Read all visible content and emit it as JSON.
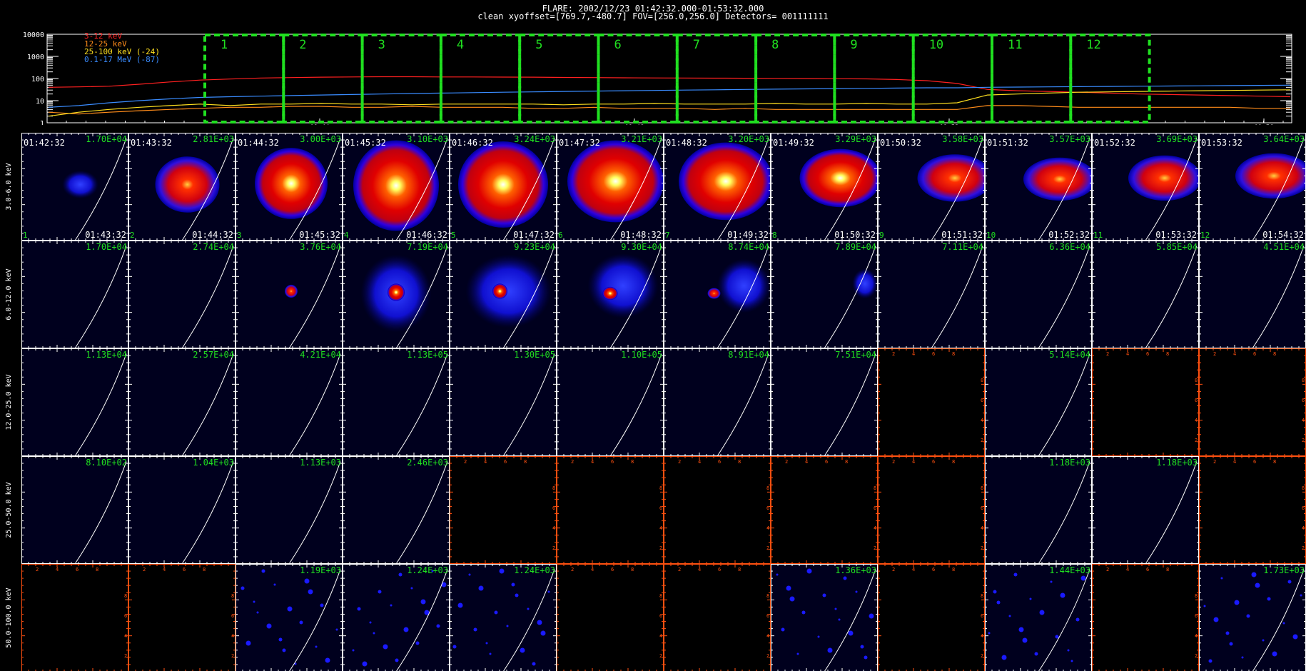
{
  "header": {
    "line1": "FLARE: 2002/12/23 01:42:32.000-01:53:32.000",
    "line2": "clean    xyoffset=[769.7,-480.7]   FOV=[256.0,256.0]    Detectors= 001111111"
  },
  "chart_data": [
    {
      "type": "line",
      "ylog": true,
      "ylim": [
        1,
        10000
      ],
      "ytick_labels": [
        "10000",
        "1000",
        "100",
        "10",
        "1"
      ],
      "xtick_labels": [
        "01:44",
        "01:48",
        "01:52",
        "01:56"
      ],
      "series": [
        {
          "name": "3-12 keV",
          "color": "#ff2020",
          "values": [
            40,
            42,
            45,
            55,
            70,
            85,
            95,
            105,
            110,
            115,
            118,
            120,
            120,
            118,
            118,
            116,
            115,
            112,
            110,
            108,
            106,
            105,
            104,
            103,
            102,
            100,
            98,
            96,
            90,
            80,
            60,
            32,
            28,
            26,
            24,
            22,
            20,
            19,
            18,
            17,
            16,
            15
          ]
        },
        {
          "name": "12-25 keV",
          "color": "#ff8c1a",
          "values": [
            3,
            2.5,
            3,
            3.5,
            4,
            4.5,
            5,
            5,
            5.5,
            5.5,
            5,
            5,
            5.5,
            5,
            5,
            5,
            4.5,
            4.5,
            5,
            4.5,
            4.5,
            4.5,
            4,
            4.5,
            4,
            4,
            4,
            4,
            4,
            4,
            4,
            6,
            6,
            5.5,
            5,
            5,
            5,
            5,
            5,
            5,
            4.5,
            4.5
          ]
        },
        {
          "name": "25-100 keV (-24)",
          "color": "#ffe020",
          "values": [
            2,
            3,
            4,
            5,
            6,
            7,
            6,
            7,
            7,
            7.5,
            7,
            7,
            6.5,
            7,
            7,
            7,
            7,
            6.5,
            7,
            7,
            7.5,
            7,
            7,
            7,
            7.5,
            7,
            7,
            7.5,
            7,
            7,
            8,
            18,
            20,
            22,
            24,
            25,
            26,
            27,
            28,
            29,
            30,
            31
          ]
        },
        {
          "name": "0.1-17 MeV (-87)",
          "color": "#3a8cff",
          "values": [
            5,
            6,
            8,
            10,
            12,
            14,
            15,
            16,
            17,
            18,
            19,
            20,
            21,
            22,
            23,
            24,
            25,
            26,
            27,
            28,
            29,
            30,
            31,
            32,
            33,
            34,
            35,
            36,
            37,
            38,
            38,
            40,
            41,
            42,
            43,
            44,
            45,
            46,
            47,
            48,
            49,
            50
          ]
        }
      ],
      "intervals": [
        "1",
        "2",
        "3",
        "4",
        "5",
        "6",
        "7",
        "8",
        "9",
        "10",
        "11",
        "12"
      ],
      "interval_color": "#20e020",
      "title": "",
      "xlabel": "",
      "ylabel": ""
    },
    {
      "type": "heatmap",
      "rows": [
        "3.0-6.0 keV",
        "6.0-12.0 keV",
        "12.0-25.0 keV",
        "25.0-50.0 keV",
        "50.0-100.0 keV"
      ],
      "columns": [
        "1",
        "2",
        "3",
        "4",
        "5",
        "6",
        "7",
        "8",
        "9",
        "10",
        "11",
        "12"
      ],
      "start_times": [
        "01:42:32",
        "01:43:32",
        "01:44:32",
        "01:45:32",
        "01:46:32",
        "01:47:32",
        "01:48:32",
        "01:49:32",
        "01:50:32",
        "01:51:32",
        "01:52:32",
        "01:53:32"
      ],
      "end_times": [
        "01:43:32",
        "01:44:32",
        "01:45:32",
        "01:46:32",
        "01:47:32",
        "01:48:32",
        "01:49:32",
        "01:50:32",
        "01:51:32",
        "01:52:32",
        "01:53:32",
        "01:54:32"
      ],
      "max_values": [
        [
          "1.70E+04",
          "2.81E+03",
          "3.00E+03",
          "3.10E+03",
          "3.24E+03",
          "3.21E+03",
          "3.20E+03",
          "3.29E+03",
          "3.58E+03",
          "3.57E+03",
          "3.69E+03",
          "3.64E+03"
        ],
        [
          "1.70E+04",
          "2.74E+04",
          "3.76E+04",
          "7.19E+04",
          "9.23E+04",
          "9.30E+04",
          "8.74E+04",
          "7.89E+04",
          "7.11E+04",
          "6.36E+04",
          "5.85E+04",
          "4.51E+04"
        ],
        [
          "1.13E+04",
          "2.57E+04",
          "4.21E+04",
          "1.13E+05",
          "1.30E+05",
          "1.10E+05",
          "8.91E+04",
          "7.51E+04",
          "",
          "5.14E+04",
          "",
          ""
        ],
        [
          "8.10E+02",
          "1.04E+03",
          "1.13E+03",
          "2.46E+03",
          "",
          "",
          "",
          "",
          "",
          "1.18E+03",
          "1.18E+03",
          ""
        ],
        [
          "",
          "",
          "1.19E+03",
          "1.24E+03",
          "1.24E+03",
          "",
          "",
          "1.36E+03",
          "",
          "1.44E+03",
          "",
          "1.73E+03"
        ]
      ],
      "empty_tick_labels": [
        "2",
        "4",
        "6",
        "8"
      ],
      "colors": {
        "label": "#20e020",
        "limb": "#ffffff",
        "frame": "#ffffff",
        "empty_frame": "#ff5010",
        "background": "#00001e"
      }
    }
  ]
}
